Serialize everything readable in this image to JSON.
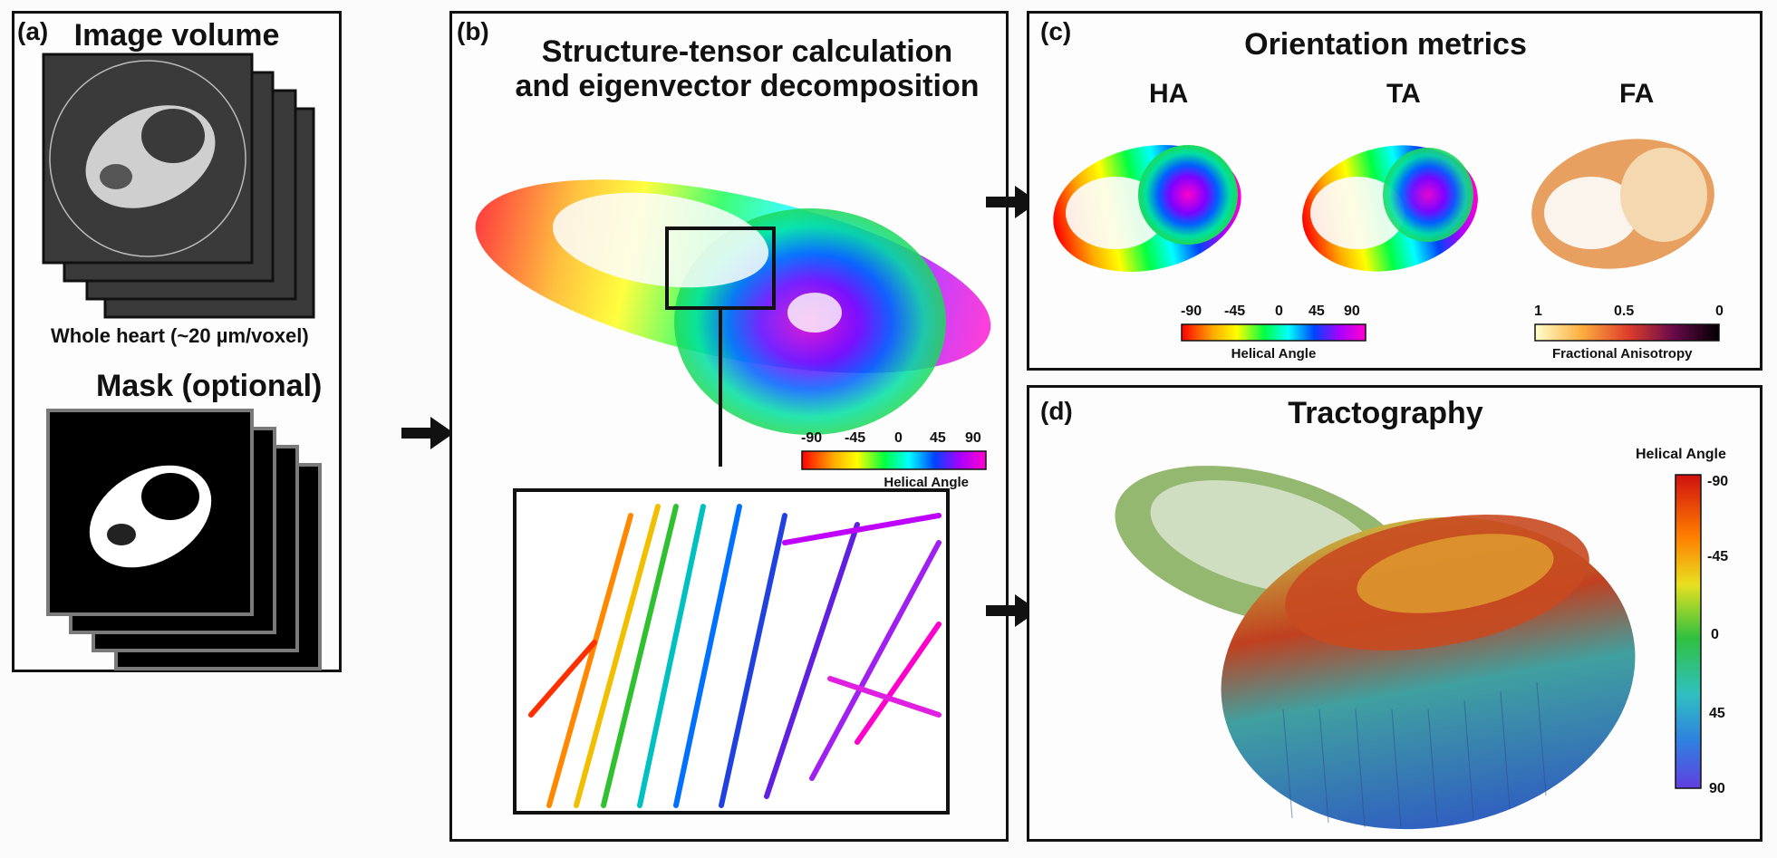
{
  "panel_a": {
    "label": "(a)",
    "title": "Image volume",
    "volume_caption": "Whole heart (~20 µm/voxel)",
    "mask_title": "Mask (optional)"
  },
  "panel_b": {
    "label": "(b)",
    "title_line1": "Structure-tensor calculation",
    "title_line2": "and eigenvector decomposition",
    "colorbar": {
      "ticks": [
        "-90",
        "-45",
        "0",
        "45",
        "90"
      ],
      "label": "Helical Angle"
    }
  },
  "panel_c": {
    "label": "(c)",
    "title": "Orientation metrics",
    "metrics": [
      "HA",
      "TA",
      "FA"
    ],
    "ha_colorbar": {
      "ticks": [
        "-90",
        "-45",
        "0",
        "45",
        "90"
      ],
      "label": "Helical Angle"
    },
    "fa_colorbar": {
      "ticks": [
        "1",
        "0.5",
        "0"
      ],
      "label": "Fractional Anisotropy"
    }
  },
  "panel_d": {
    "label": "(d)",
    "title": "Tractography",
    "colorbar": {
      "title": "Helical Angle",
      "ticks": [
        "-90",
        "-45",
        "0",
        "45",
        "90"
      ]
    }
  },
  "colors": {
    "border": "#111111",
    "dark_slice": "#3a3a3a",
    "mask_frame": "#7a7a7a"
  }
}
